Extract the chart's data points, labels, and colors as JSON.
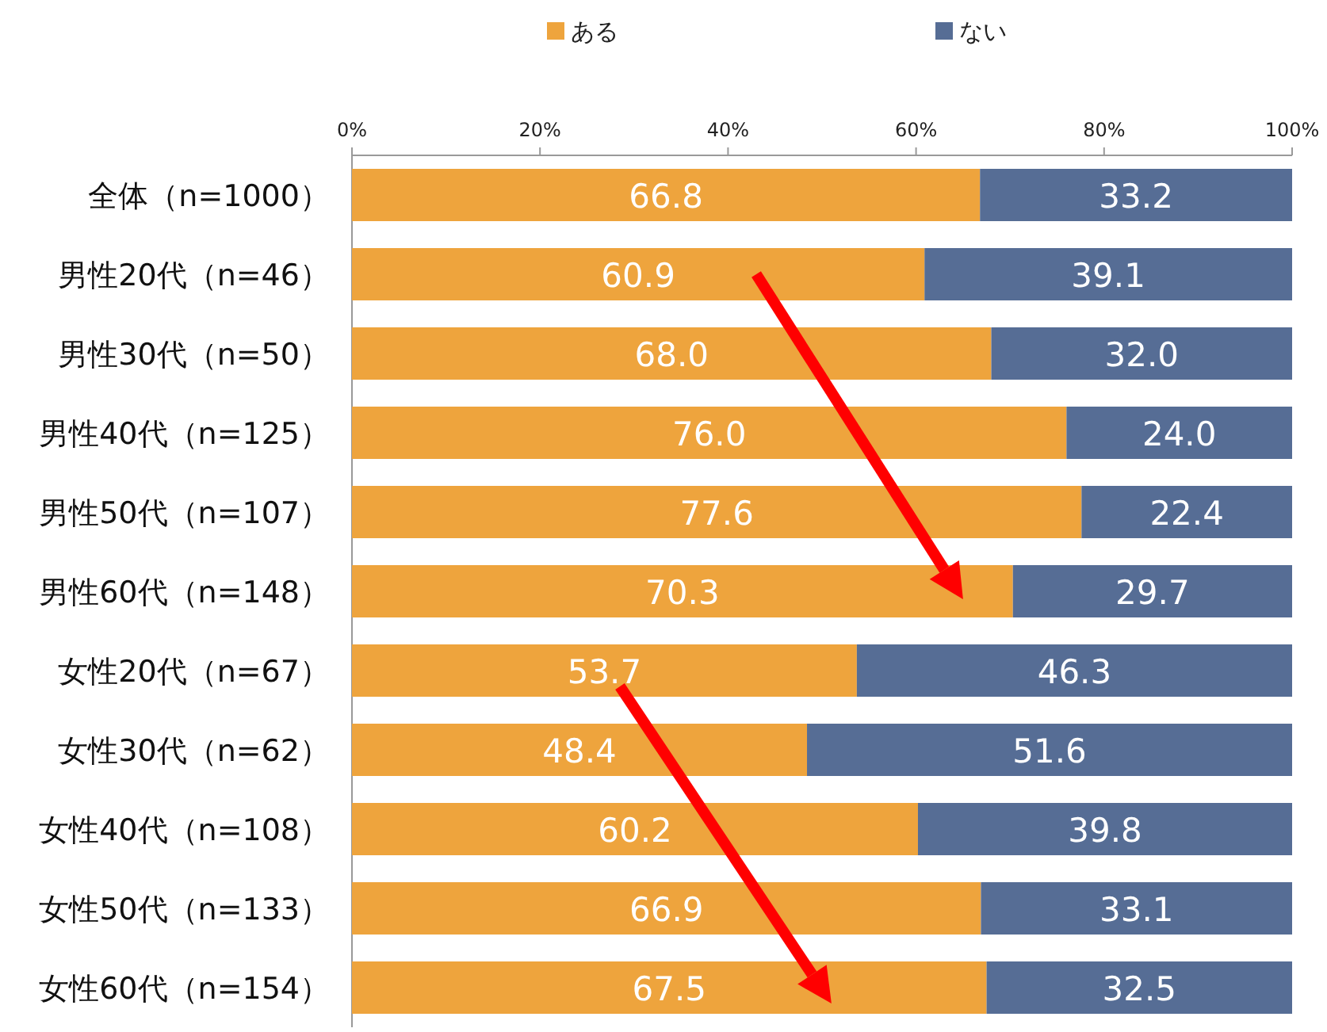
{
  "chart_data": {
    "type": "bar",
    "orientation": "horizontal",
    "stacked": true,
    "categories": [
      "全体（n=1000）",
      "男性20代（n=46）",
      "男性30代（n=50）",
      "男性40代（n=125）",
      "男性50代（n=107）",
      "男性60代（n=148）",
      "女性20代（n=67）",
      "女性30代（n=62）",
      "女性40代（n=108）",
      "女性50代（n=133）",
      "女性60代（n=154）"
    ],
    "series": [
      {
        "name": "ある",
        "color": "#eea43d",
        "values": [
          66.8,
          60.9,
          68.0,
          76.0,
          77.6,
          70.3,
          53.7,
          48.4,
          60.2,
          66.9,
          67.5
        ],
        "value_labels": [
          "66.8",
          "60.9",
          "68.0",
          "76.0",
          "77.6",
          "70.3",
          "53.7",
          "48.4",
          "60.2",
          "66.9",
          "67.5"
        ]
      },
      {
        "name": "ない",
        "color": "#566d95",
        "values": [
          33.2,
          39.1,
          32.0,
          24.0,
          22.4,
          29.7,
          46.3,
          51.6,
          39.8,
          33.1,
          32.5
        ],
        "value_labels": [
          "33.2",
          "39.1",
          "32.0",
          "24.0",
          "22.4",
          "29.7",
          "46.3",
          "51.6",
          "39.8",
          "33.1",
          "32.5"
        ]
      }
    ],
    "xlim": [
      0,
      100
    ],
    "xticks": [
      {
        "value": 0,
        "label": "0%"
      },
      {
        "value": 20,
        "label": "20%"
      },
      {
        "value": 40,
        "label": "40%"
      },
      {
        "value": 60,
        "label": "60%"
      },
      {
        "value": 80,
        "label": "80%"
      },
      {
        "value": 100,
        "label": "100%"
      }
    ],
    "legend": "top",
    "grid": false
  }
}
